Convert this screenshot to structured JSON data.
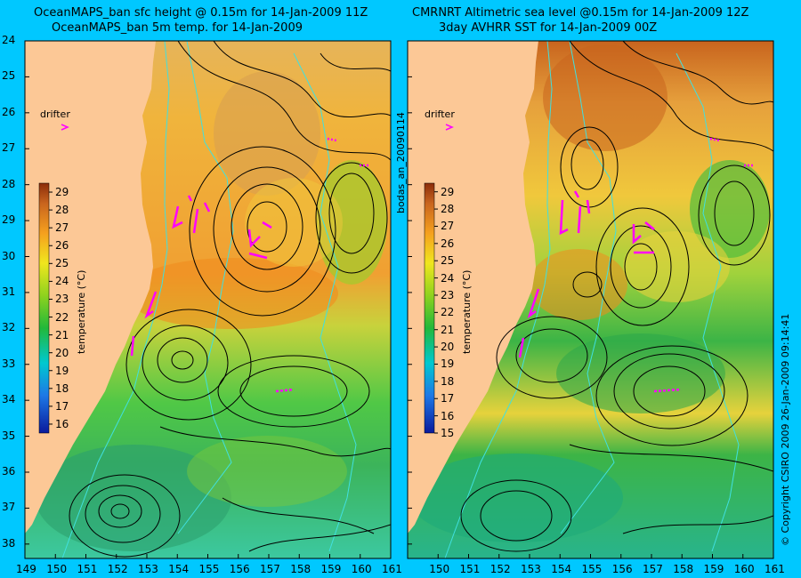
{
  "left_panel": {
    "title_line1": "OceanMAPS_ban sfc height @ 0.15m for 14-Jan-2009 11Z",
    "title_line2": "OceanMAPS_ban 5m temp. for 14-Jan-2009",
    "drifter_label": "drifter",
    "colorbar": {
      "label": "temperature (°C)",
      "min": 15.5,
      "max": 29.5,
      "ticks": [
        29,
        28,
        27,
        26,
        25,
        24,
        23,
        22,
        21,
        20,
        19,
        18,
        17,
        16
      ]
    }
  },
  "right_panel": {
    "title_line1": "CMRNRT Altimetric sea level  @0.15m  for 14-Jan-2009 12Z",
    "title_line2": "3day AVHRR SST for 14-Jan-2009 00Z",
    "drifter_label": "drifter",
    "vertical_label": "bodas_an_20090114",
    "colorbar": {
      "label": "temperature (°C)",
      "min": 15,
      "max": 29.5,
      "ticks": [
        29,
        28,
        27,
        26,
        25,
        24,
        23,
        22,
        21,
        20,
        19,
        18,
        17,
        16,
        15
      ]
    }
  },
  "latitude_ticks": [
    "24",
    "25",
    "26",
    "27",
    "28",
    "29",
    "30",
    "31",
    "32",
    "33",
    "34",
    "35",
    "36",
    "37",
    "38"
  ],
  "longitude_ticks_left": [
    "149",
    "150",
    "151",
    "152",
    "153",
    "154",
    "155",
    "156",
    "157",
    "158",
    "159",
    "160",
    "161"
  ],
  "longitude_ticks_right": [
    "150",
    "151",
    "152",
    "153",
    "154",
    "155",
    "156",
    "157",
    "158",
    "159",
    "160",
    "161"
  ],
  "copyright": "© Copyright CSIRO 2009    26-Jan-2009 09:14:41",
  "colors": {
    "background": "#00c8ff",
    "land": "#fcc896",
    "drifter": "#ff00ff",
    "contour": "#000000",
    "isobath": "#40e0e0"
  }
}
